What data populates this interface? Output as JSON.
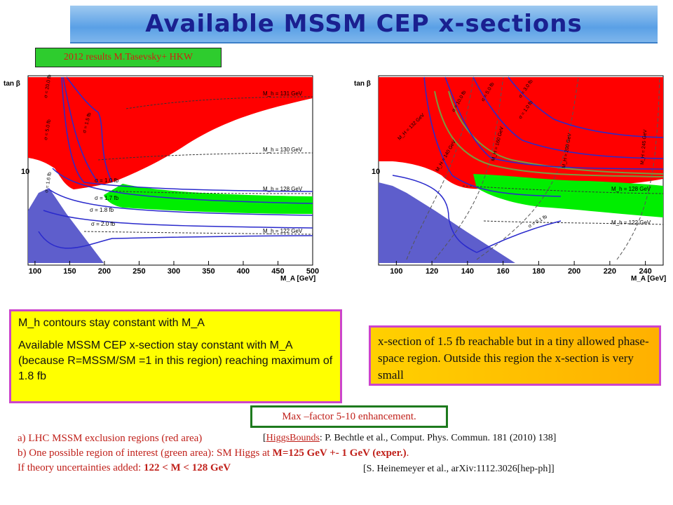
{
  "title": "Available MSSM CEP x-sections",
  "results_tag": "2012 results M.Tasevsky+ HKW",
  "colors": {
    "excluded": "#ff0000",
    "allowed_band": "#00ee00",
    "low_region": "#5e5ecc",
    "xsec_contour": "#2a2acc",
    "mh_contour": "#333333"
  },
  "chart_data": [
    {
      "type": "area",
      "xlabel": "M_A [GeV]",
      "ylabel": "tan β",
      "xlim": [
        90,
        500
      ],
      "x_ticks": [
        100,
        150,
        200,
        250,
        300,
        350,
        400,
        450,
        500
      ],
      "y_ticks": [
        10
      ],
      "log_y": true,
      "mh_contour_labels": [
        "M_h = 131 GeV",
        "M_h = 130 GeV",
        "M_h = 128 GeV",
        "M_h = 122 GeV"
      ],
      "xsec_contour_labels": [
        "σ = 1.0 fb",
        "σ = 1.7 fb",
        "σ = 1.8 fb",
        "σ = 2.0 fb",
        "σ = 20.0 fb",
        "σ = 5.0 fb",
        "σ = 1.6 fb",
        "σ = 1.5 fb"
      ]
    },
    {
      "type": "area",
      "xlabel": "M_A [GeV]",
      "ylabel": "tan β",
      "xlim": [
        90,
        250
      ],
      "x_ticks": [
        100,
        120,
        140,
        160,
        180,
        200,
        220,
        240
      ],
      "y_ticks": [
        10
      ],
      "log_y": true,
      "mh_contour_labels": [
        "M_h = 128 GeV",
        "M_h = 122 GeV"
      ],
      "mH_contour_labels": [
        "M_H = 132 GeV",
        "M_H = 140 GeV",
        "M_H = 160 GeV",
        "M_H = 200 GeV",
        "M_H = 245 GeV"
      ],
      "xsec_contour_labels": [
        "σ = 10.0 fb",
        "σ = 5.0 fb",
        "σ = 3.0 fb",
        "σ = 1.0 fb",
        "σ = 0.1 fb"
      ]
    }
  ],
  "yellow_box": {
    "line1": "M_h contours stay constant with M_A",
    "line2": "Available MSSM CEP x-section stay constant with M_A (because R=MSSM/SM =1 in this region) reaching maximum of 1.8 fb"
  },
  "orange_box": {
    "text": "x-section of 1.5 fb reachable but in a tiny allowed phase-space region. Outside this region the x-section is very small"
  },
  "max_box": {
    "text": "Max –factor 5-10 enhancement."
  },
  "references": {
    "a_label": "a) LHC MSSM exclusion regions (red area)",
    "a_ref_pre": "[",
    "a_ref_link": "HiggsBounds",
    "a_ref_post": ": P. Bechtle et al., Comput. Phys. Commun. 181 (2010) 138]",
    "b_label_pre": "b) One possible region of interest (green area): SM Higgs at ",
    "b_label_bold": "M=125 GeV +- 1 GeV (exper.)",
    "b_label_post": ".",
    "c_label_pre": "If theory uncertainties added: ",
    "c_label_bold": "122 < M < 128 GeV",
    "c_ref": "[S. Heinemeyer et al., arXiv:1112.3026[hep-ph]]"
  }
}
